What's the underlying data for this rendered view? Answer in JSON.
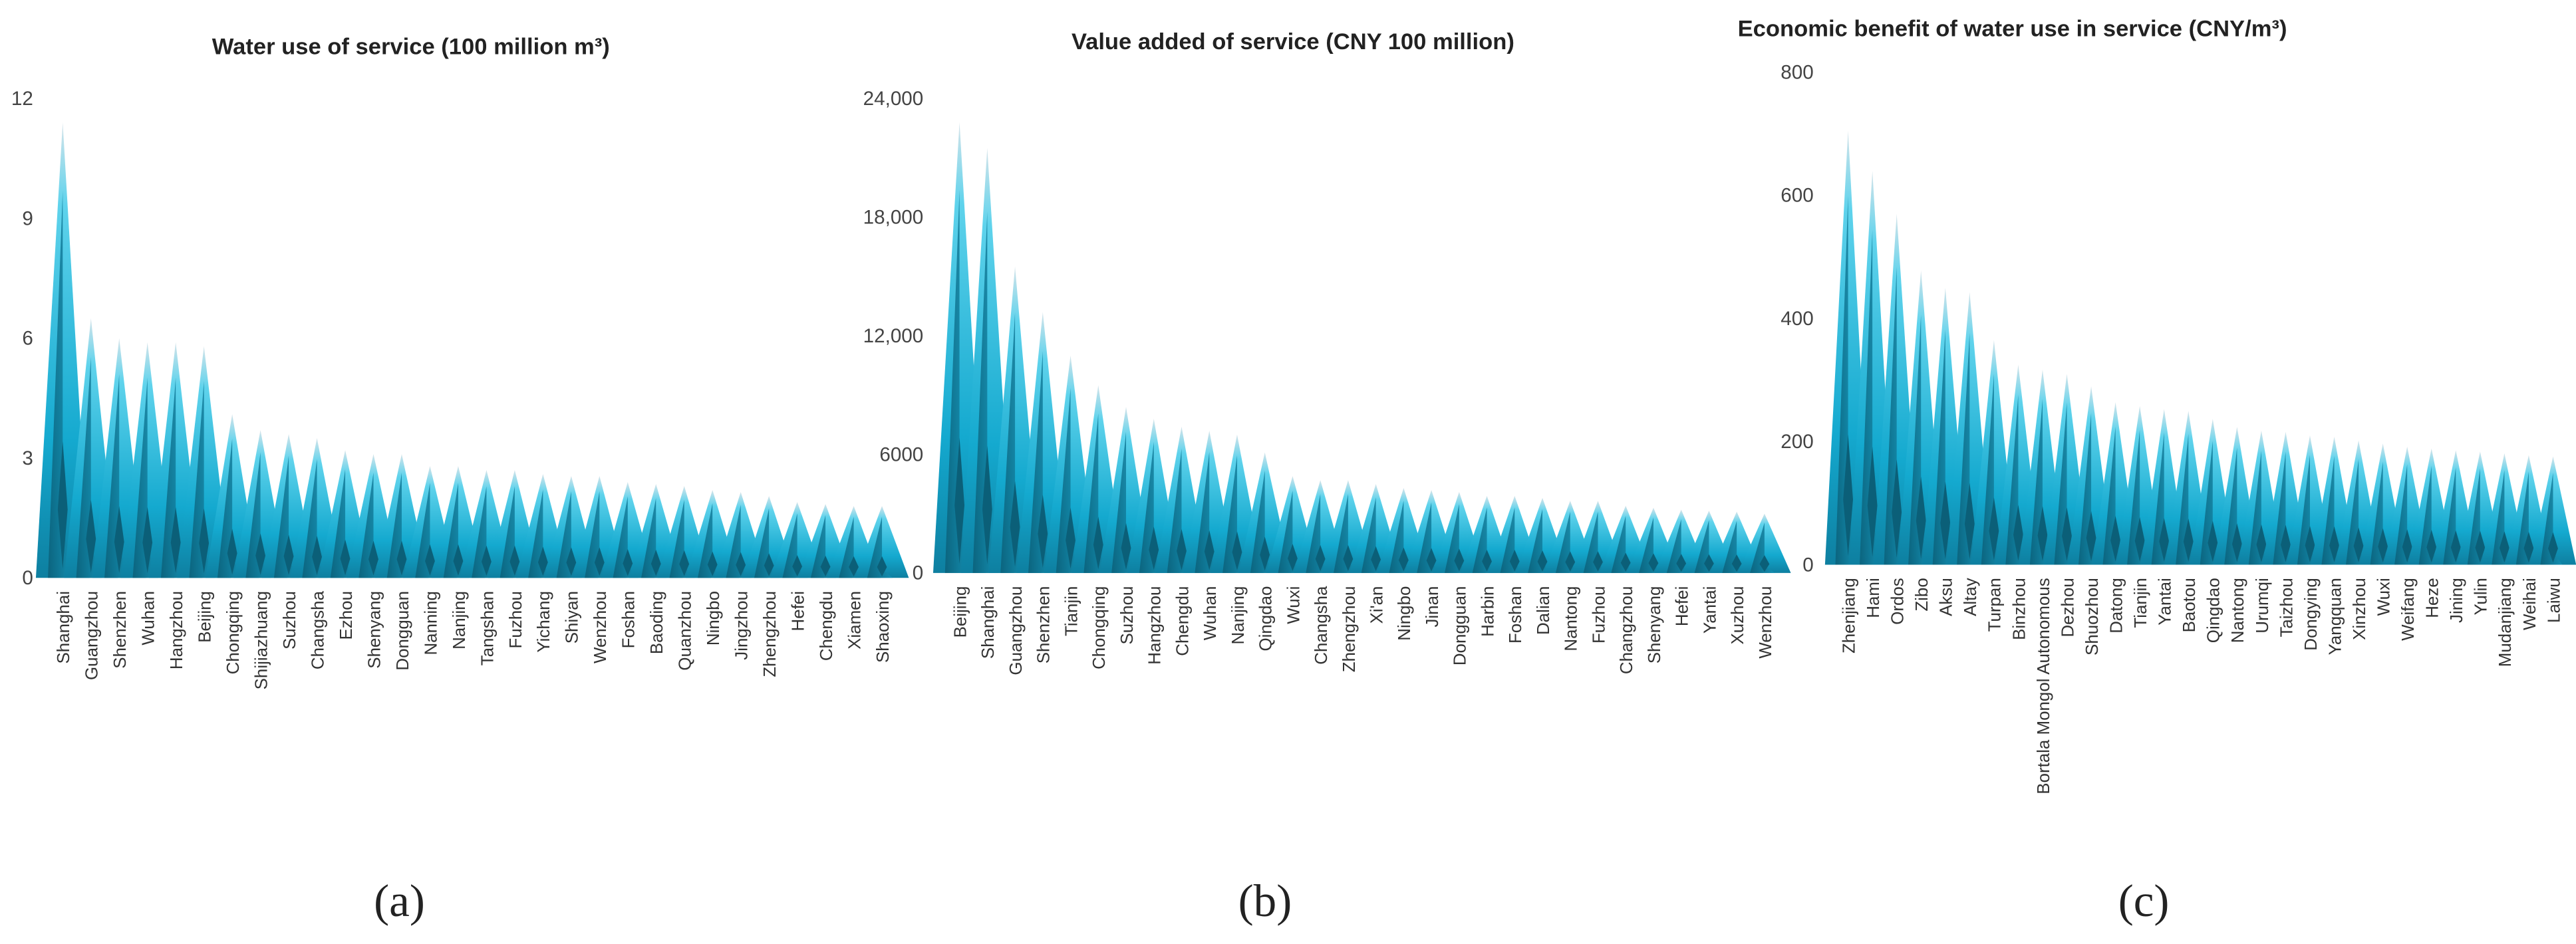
{
  "chart_data": [
    {
      "type": "bar",
      "panel_label": "(a)",
      "title": "Water use of service (100 million m³)",
      "ylim": [
        0,
        12
      ],
      "yticks": [
        "0",
        "3",
        "6",
        "9",
        "12"
      ],
      "ytick_values": [
        0,
        3,
        6,
        9,
        12
      ],
      "categories": [
        "Shanghai",
        "Guangzhou",
        "Shenzhen",
        "Wuhan",
        "Hangzhou",
        "Beijing",
        "Chongqing",
        "Shijiazhuang",
        "Suzhou",
        "Changsha",
        "Ezhou",
        "Shenyang",
        "Dongguan",
        "Nanning",
        "Nanjing",
        "Tangshan",
        "Fuzhou",
        "Yichang",
        "Shiyan",
        "Wenzhou",
        "Foshan",
        "Baoding",
        "Quanzhou",
        "Ningbo",
        "Jingzhou",
        "Zhengzhou",
        "Hefei",
        "Chengdu",
        "Xiamen",
        "Shaoxing"
      ],
      "values": [
        11.4,
        6.5,
        6.0,
        5.9,
        5.9,
        5.8,
        4.1,
        3.7,
        3.6,
        3.5,
        3.2,
        3.1,
        3.1,
        2.8,
        2.8,
        2.7,
        2.7,
        2.6,
        2.55,
        2.55,
        2.4,
        2.35,
        2.3,
        2.2,
        2.15,
        2.05,
        1.9,
        1.85,
        1.8,
        1.8
      ]
    },
    {
      "type": "bar",
      "panel_label": "(b)",
      "title": "Value added of service (CNY 100 million)",
      "ylim": [
        0,
        24000
      ],
      "yticks": [
        "0",
        "6000",
        "12,000",
        "18,000",
        "24,000"
      ],
      "ytick_values": [
        0,
        6000,
        12000,
        18000,
        24000
      ],
      "categories": [
        "Beijing",
        "Shanghai",
        "Guangzhou",
        "Shenzhen",
        "Tianjin",
        "Chongqing",
        "Suzhou",
        "Hangzhou",
        "Chengdu",
        "Wuhan",
        "Nanjing",
        "Qingdao",
        "Wuxi",
        "Changsha",
        "Zhengzhou",
        "Xi'an",
        "Ningbo",
        "Jinan",
        "Dongguan",
        "Harbin",
        "Foshan",
        "Dalian",
        "Nantong",
        "Fuzhou",
        "Changzhou",
        "Shenyang",
        "Hefei",
        "Yantai",
        "Xuzhou",
        "Wenzhou"
      ],
      "values": [
        22800,
        21500,
        15500,
        13200,
        11000,
        9500,
        8400,
        7800,
        7400,
        7200,
        7000,
        6100,
        4900,
        4700,
        4700,
        4500,
        4300,
        4200,
        4100,
        3900,
        3900,
        3800,
        3650,
        3650,
        3400,
        3300,
        3200,
        3150,
        3100,
        3000
      ]
    },
    {
      "type": "bar",
      "panel_label": "(c)",
      "title": "Economic benefit of water use in service (CNY/m³)",
      "ylim": [
        0,
        800
      ],
      "yticks": [
        "0",
        "200",
        "400",
        "600",
        "800"
      ],
      "ytick_values": [
        0,
        200,
        400,
        600,
        800
      ],
      "categories": [
        "Zhenjiang",
        "Hami",
        "Ordos",
        "Zibo",
        "Aksu",
        "Altay",
        "Turpan",
        "Binzhou",
        "Bortala Mongol Autonomous",
        "Dezhou",
        "Shuozhou",
        "Datong",
        "Tianjin",
        "Yantai",
        "Baotou",
        "Qingdao",
        "Nantong",
        "Urumqi",
        "Taizhou",
        "Dongying",
        "Yangquan",
        "Xinzhou",
        "Wuxi",
        "Weifang",
        "Heze",
        "Jining",
        "Yulin",
        "Mudanjiang",
        "Weihai",
        "Laiwu"
      ],
      "values": [
        705,
        640,
        570,
        478,
        450,
        443,
        365,
        325,
        317,
        310,
        290,
        264,
        258,
        253,
        250,
        237,
        224,
        218,
        216,
        210,
        208,
        202,
        197,
        192,
        189,
        186,
        184,
        181,
        178,
        176
      ]
    }
  ],
  "colors": {
    "spike_light": "#5fd3ec",
    "spike_mid": "#14a9cf",
    "spike_dark": "#0b5f78",
    "tip": "#d6e4ea"
  }
}
